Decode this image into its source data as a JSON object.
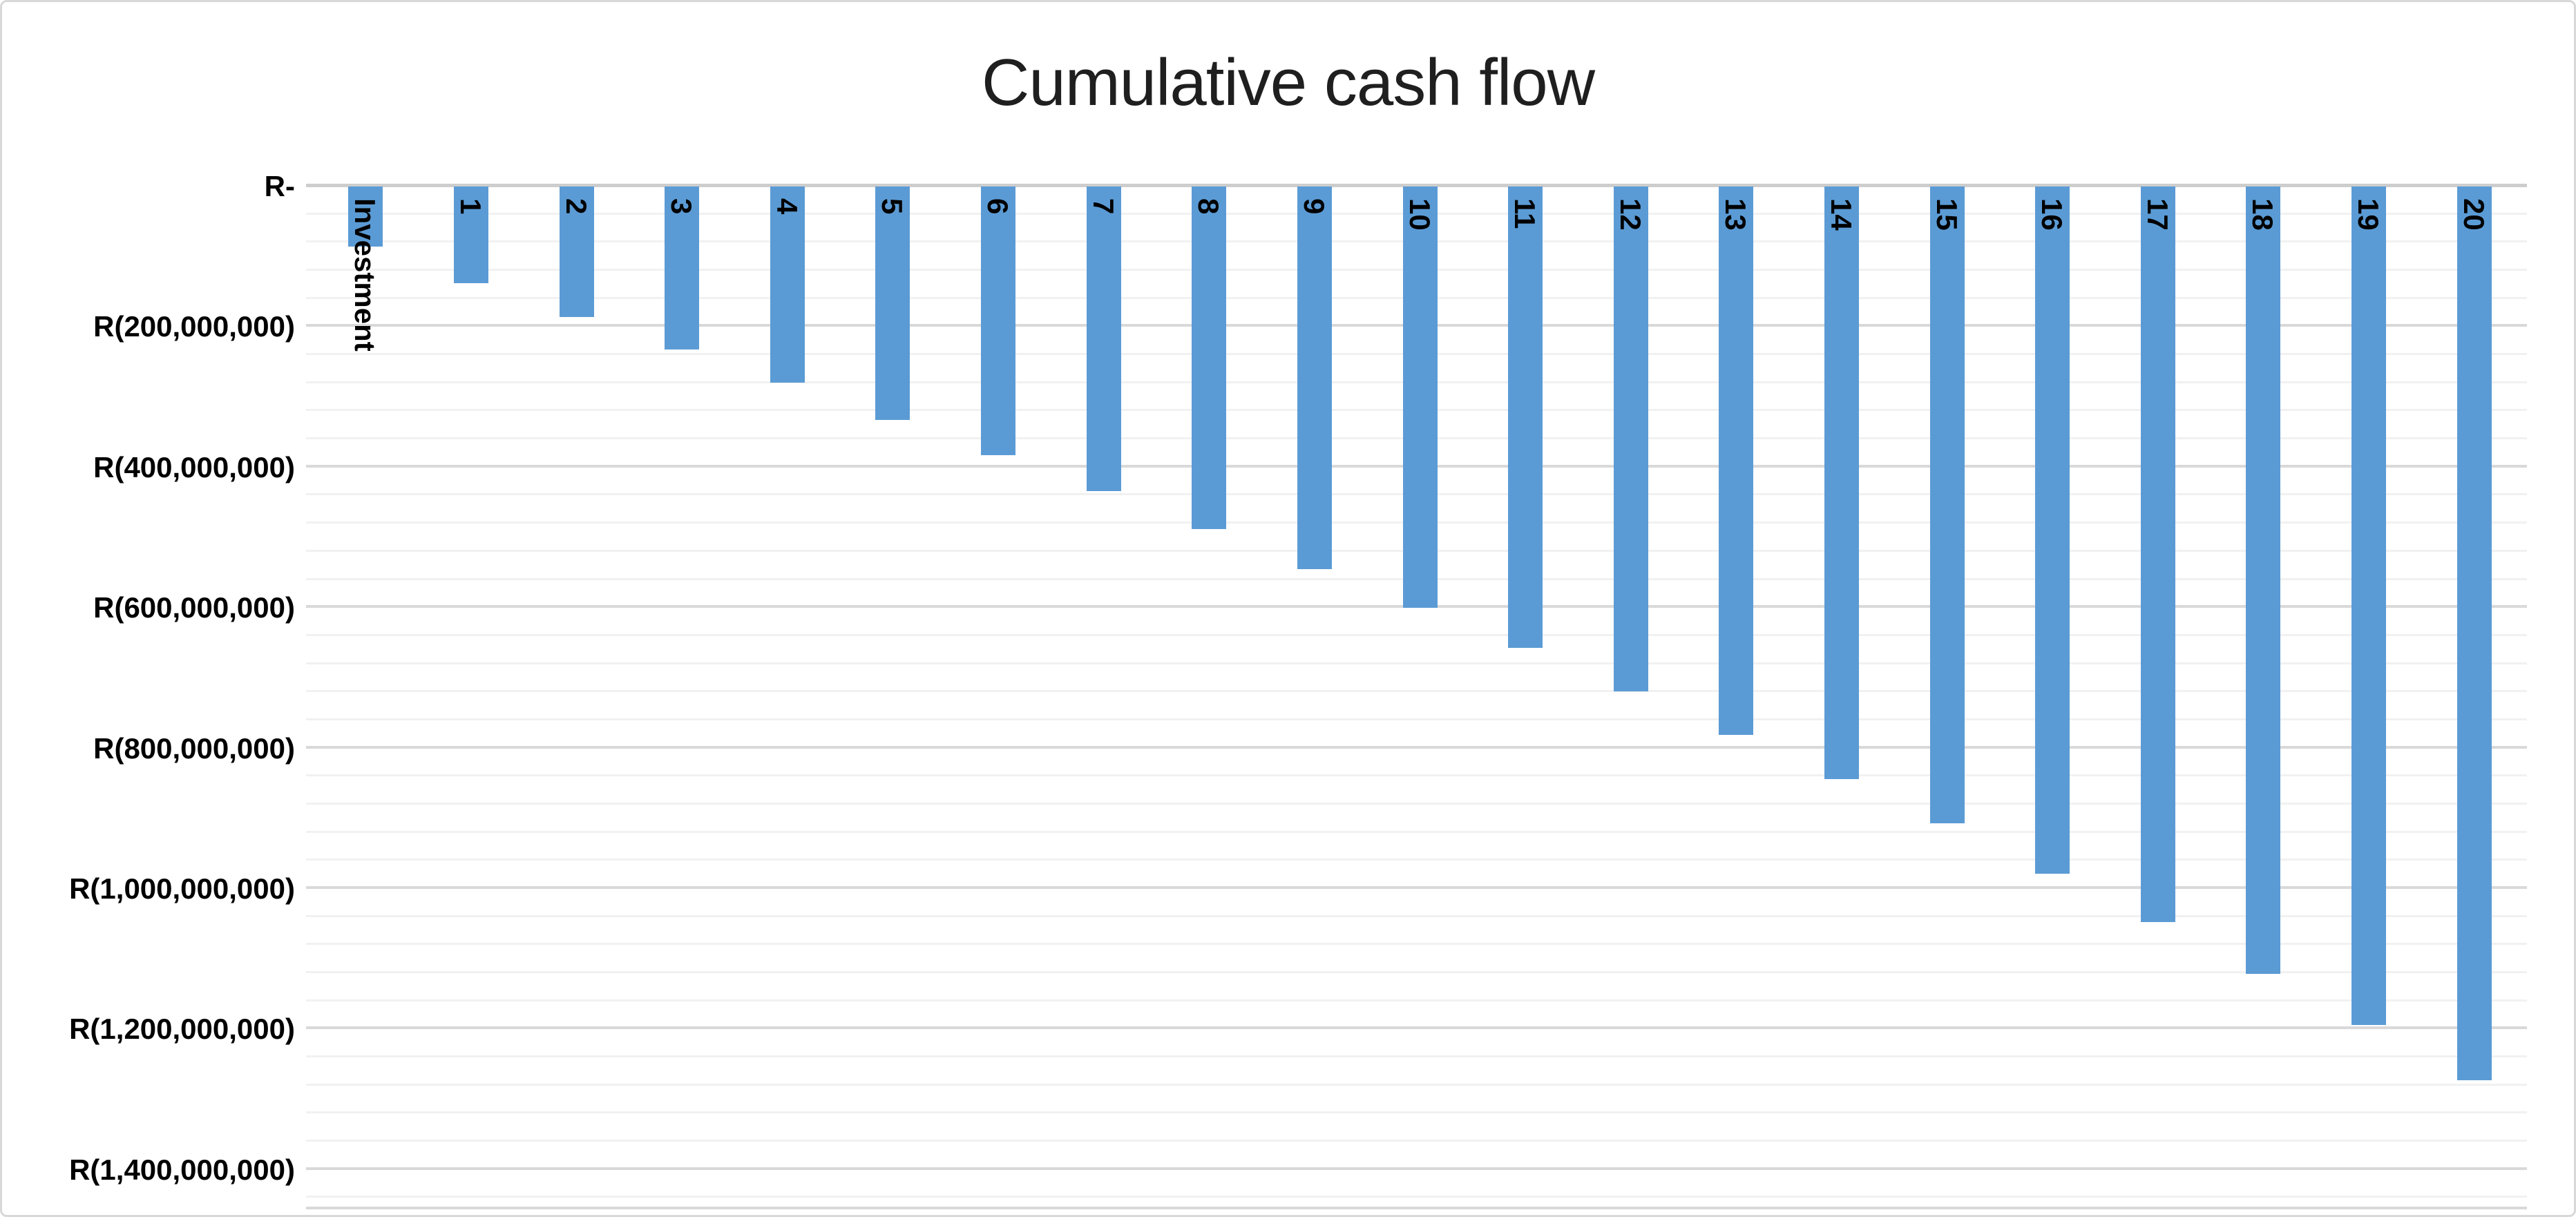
{
  "chart_data": {
    "type": "bar",
    "title": "Cumulative cash flow",
    "categories": [
      "Investment",
      "1",
      "2",
      "3",
      "4",
      "5",
      "6",
      "7",
      "8",
      "9",
      "10",
      "11",
      "12",
      "13",
      "14",
      "15",
      "16",
      "17",
      "18",
      "19",
      "20"
    ],
    "values": [
      -88000000,
      -140000000,
      -188000000,
      -234000000,
      -281000000,
      -334000000,
      -384000000,
      -436000000,
      -490000000,
      -547000000,
      -602000000,
      -659000000,
      -721000000,
      -783000000,
      -846000000,
      -909000000,
      -980000000,
      -1049000000,
      -1123000000,
      -1196000000,
      -1274000000
    ],
    "series_name": "Cumulative cash flow",
    "xlabel": "",
    "ylabel": "",
    "currency_prefix": "R",
    "bar_direction": "down",
    "category_labels_rotation_deg": 90,
    "legend": "none",
    "grid": "on",
    "y_axis": {
      "max": 0,
      "min": -1400000000,
      "major_unit": 200000000,
      "minor_unit": 40000000,
      "tick_labels": [
        "R-",
        "R(200,000,000)",
        "R(400,000,000)",
        "R(600,000,000)",
        "R(800,000,000)",
        "R(1,000,000,000)",
        "R(1,200,000,000)",
        "R(1,400,000,000)"
      ]
    },
    "style": {
      "bar_color": "#5b9bd5",
      "minor_grid_color": "#f1f1f1",
      "major_grid_color": "#d9d9d9",
      "zero_axis_color": "#cdcdcd",
      "title_color": "#1f1f1f",
      "label_color": "#000000",
      "border_color": "#d8d8d8",
      "background_color": "#ffffff"
    }
  }
}
